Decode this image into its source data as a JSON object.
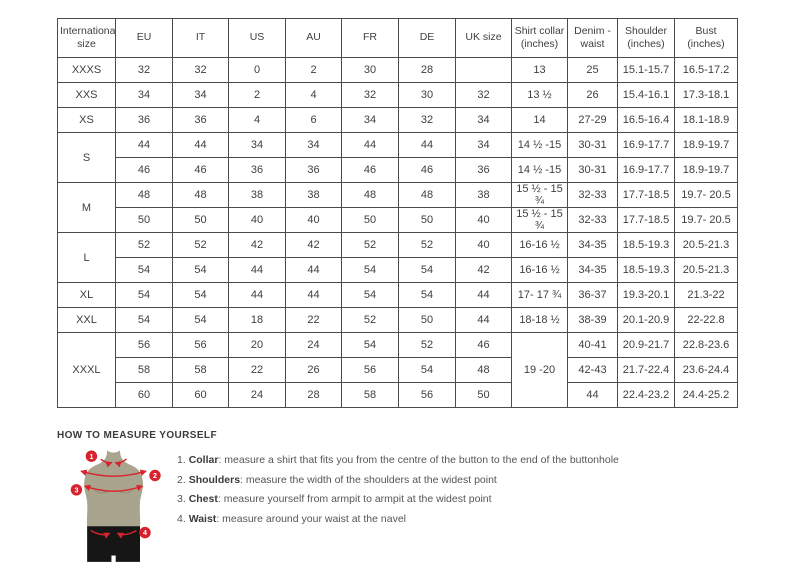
{
  "table": {
    "headers": [
      "International size",
      "EU",
      "IT",
      "US",
      "AU",
      "FR",
      "DE",
      "UK size",
      "Shirt collar (inches)",
      "Denim - waist",
      "Shoulder (inches)",
      "Bust (inches)"
    ],
    "groups": [
      {
        "size": "XXXS",
        "rows": [
          [
            "32",
            "32",
            "0",
            "2",
            "30",
            "28",
            "",
            "13",
            "25",
            "15.1-15.7",
            "16.5-17.2"
          ]
        ]
      },
      {
        "size": "XXS",
        "rows": [
          [
            "34",
            "34",
            "2",
            "4",
            "32",
            "30",
            "32",
            "13 ½",
            "26",
            "15.4-16.1",
            "17.3-18.1"
          ]
        ]
      },
      {
        "size": "XS",
        "rows": [
          [
            "36",
            "36",
            "4",
            "6",
            "34",
            "32",
            "34",
            "14",
            "27-29",
            "16.5-16.4",
            "18.1-18.9"
          ]
        ]
      },
      {
        "size": "S",
        "rows": [
          [
            "44",
            "44",
            "34",
            "34",
            "44",
            "44",
            "34",
            "14 ½ -15",
            "30-31",
            "16.9-17.7",
            "18.9-19.7"
          ],
          [
            "46",
            "46",
            "36",
            "36",
            "46",
            "46",
            "36",
            "14 ½ -15",
            "30-31",
            "16.9-17.7",
            "18.9-19.7"
          ]
        ]
      },
      {
        "size": "M",
        "rows": [
          [
            "48",
            "48",
            "38",
            "38",
            "48",
            "48",
            "38",
            "15 ½ - 15 ¾",
            "32-33",
            "17.7-18.5",
            "19.7- 20.5"
          ],
          [
            "50",
            "50",
            "40",
            "40",
            "50",
            "50",
            "40",
            "15 ½ - 15 ¾",
            "32-33",
            "17.7-18.5",
            "19.7- 20.5"
          ]
        ]
      },
      {
        "size": "L",
        "rows": [
          [
            "52",
            "52",
            "42",
            "42",
            "52",
            "52",
            "40",
            "16-16 ½",
            "34-35",
            "18.5-19.3",
            "20.5-21.3"
          ],
          [
            "54",
            "54",
            "44",
            "44",
            "54",
            "54",
            "42",
            "16-16 ½",
            "34-35",
            "18.5-19.3",
            "20.5-21.3"
          ]
        ]
      },
      {
        "size": "XL",
        "rows": [
          [
            "54",
            "54",
            "44",
            "44",
            "54",
            "54",
            "44",
            "17- 17 ¾",
            "36-37",
            "19.3-20.1",
            "21.3-22"
          ]
        ]
      },
      {
        "size": "XXL",
        "rows": [
          [
            "54",
            "54",
            "18",
            "22",
            "52",
            "50",
            "44",
            "18-18 ½",
            "38-39",
            "20.1-20.9",
            "22-22.8"
          ]
        ]
      },
      {
        "size": "XXXL",
        "collar": "19 -20",
        "rows": [
          [
            "56",
            "56",
            "20",
            "24",
            "54",
            "52",
            "46",
            "40-41",
            "20.9-21.7",
            "22.8-23.6"
          ],
          [
            "58",
            "58",
            "22",
            "26",
            "56",
            "54",
            "48",
            "42-43",
            "21.7-22.4",
            "23.6-24.4"
          ],
          [
            "60",
            "60",
            "24",
            "28",
            "58",
            "56",
            "50",
            "44",
            "22.4-23.2",
            "24.4-25.2"
          ]
        ]
      }
    ]
  },
  "measure": {
    "heading": "HOW TO MEASURE YOURSELF",
    "instructions": [
      {
        "num": "1.",
        "label": "Collar",
        "text": ": measure a shirt that fits you from the centre of the button to the end of the buttonhole"
      },
      {
        "num": "2.",
        "label": "Shoulders",
        "text": ": measure the width of the shoulders at the widest point"
      },
      {
        "num": "3.",
        "label": "Chest",
        "text": ": measure yourself from armpit to armpit at the widest point"
      },
      {
        "num": "4.",
        "label": "Waist",
        "text": ": measure around your waist at the navel"
      }
    ],
    "figure": {
      "badges": [
        "1",
        "2",
        "3",
        "4"
      ],
      "torso_color": "#a9a48d",
      "shorts_color": "#161616",
      "accent_red": "#d8232e"
    }
  }
}
